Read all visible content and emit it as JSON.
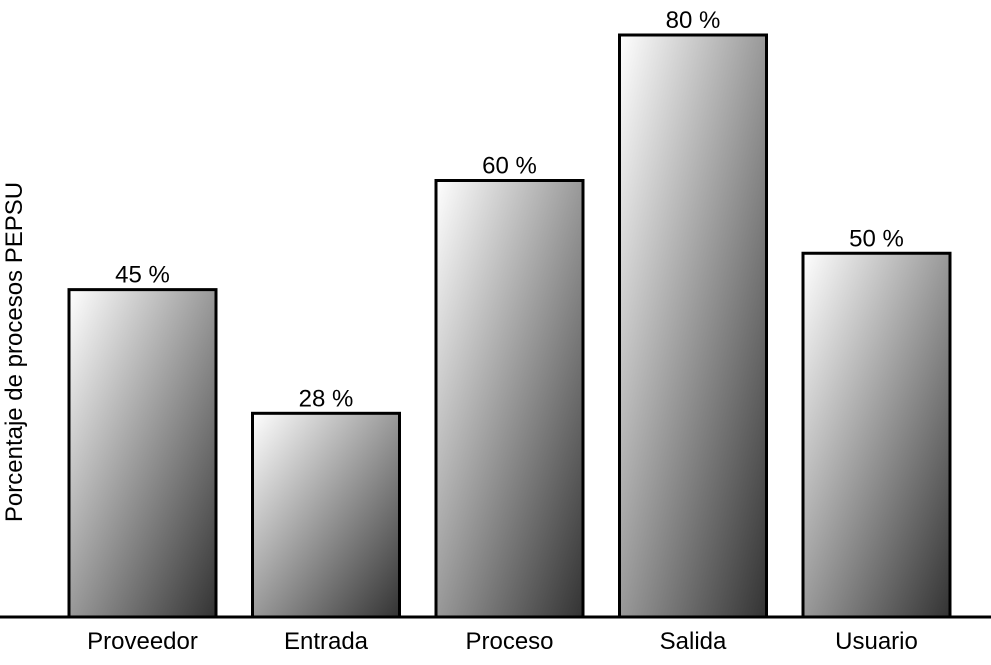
{
  "chart_data": {
    "type": "bar",
    "title": "",
    "xlabel": "",
    "ylabel": "Porcentaje de procesos PEPSU",
    "categories": [
      "Proveedor",
      "Entrada",
      "Proceso",
      "Salida",
      "Usuario"
    ],
    "values": [
      45,
      28,
      60,
      80,
      50
    ],
    "data_labels": [
      "45 %",
      "28 %",
      "60 %",
      "80 %",
      "50 %"
    ],
    "ylim": [
      0,
      80
    ],
    "grid": false,
    "legend": "none",
    "colors": {
      "bar_light": "#ffffff",
      "bar_dark": "#333333",
      "outline": "#000000"
    }
  }
}
